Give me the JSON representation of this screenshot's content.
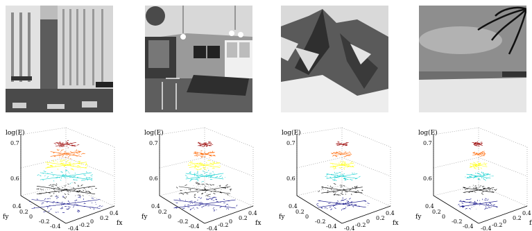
{
  "panels": [
    {
      "id": "city",
      "z_top_tick": "0.7",
      "z_mid_tick": "0.6"
    },
    {
      "id": "kitchen",
      "z_top_tick": "0.7",
      "z_mid_tick": "0.6"
    },
    {
      "id": "mountain",
      "z_top_tick": "0.7",
      "z_mid_tick": "0.6"
    },
    {
      "id": "beach",
      "z_top_tick": "0.7",
      "z_mid_tick": "0.6"
    }
  ],
  "axes": {
    "zlabel": "log(E)",
    "ylabel": "fy",
    "xlabel": "fx",
    "fy_ticks": [
      "0.4",
      "0.2",
      "0",
      "-0.2",
      "-0.4"
    ],
    "fx_ticks": [
      "-0.4",
      "-0.2",
      "0",
      "0.2",
      "0.4"
    ]
  },
  "colors": {
    "levels": [
      "#00007f",
      "#000000",
      "#00cccc",
      "#ffff00",
      "#ff6600",
      "#990000"
    ]
  }
}
